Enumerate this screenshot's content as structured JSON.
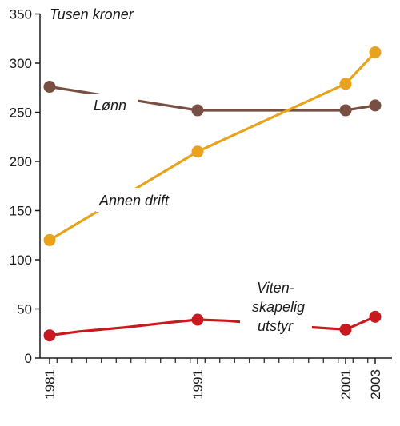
{
  "chart_data": {
    "type": "line",
    "unit_label": "Tusen kroner",
    "x_ticks": [
      1981,
      1991,
      2001,
      2003
    ],
    "y_ticks": [
      0,
      50,
      100,
      150,
      200,
      250,
      300,
      350
    ],
    "ylim": [
      0,
      350
    ],
    "xlim": [
      1980,
      2004
    ],
    "grid": false,
    "series": [
      {
        "name": "Lønn",
        "color": "#7a4f43",
        "x": [
          1981,
          1991,
          1997,
          2001,
          2003
        ],
        "y": [
          276,
          252,
          252,
          252,
          257
        ],
        "markers": [
          1981,
          1991,
          2001,
          2003
        ]
      },
      {
        "name": "Annen drift",
        "color": "#e8a21c",
        "x": [
          1981,
          1991,
          2001,
          2003
        ],
        "y": [
          120,
          210,
          279,
          311
        ],
        "markers": [
          1981,
          1991,
          2001,
          2003
        ]
      },
      {
        "name_lines": [
          "Viten-",
          "skapelig",
          "utstyr"
        ],
        "color": "#c8191e",
        "x": [
          1981,
          1983,
          1986,
          1989,
          1991,
          1993,
          1996,
          1999,
          2001,
          2003
        ],
        "y": [
          23,
          27,
          31,
          36,
          39,
          38,
          34,
          31,
          29,
          42
        ],
        "markers": [
          1981,
          1991,
          2001,
          2003
        ]
      }
    ]
  }
}
